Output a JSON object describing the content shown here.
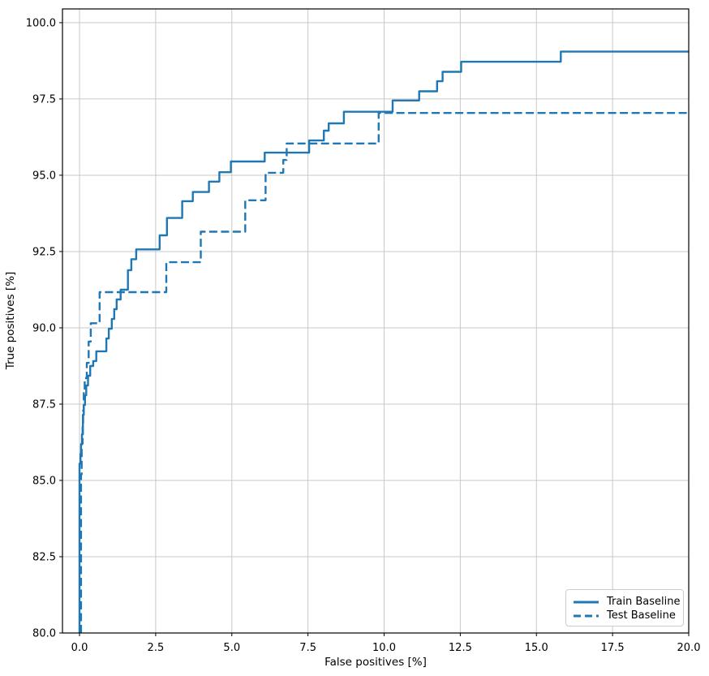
{
  "chart_data": {
    "type": "line",
    "subtype": "step-post",
    "title": "",
    "xlabel": "False positives [%]",
    "ylabel": "True positives [%]",
    "xlim": [
      -0.56,
      20.0
    ],
    "ylim": [
      80.0,
      100.45
    ],
    "grid": true,
    "legend_position": "lower right",
    "line_color": "#1f77b4",
    "grid_color": "#c9c9c9",
    "spine_color": "#000000",
    "xticks": [
      0.0,
      2.5,
      5.0,
      7.5,
      10.0,
      12.5,
      15.0,
      17.5,
      20.0
    ],
    "xtick_labels": [
      "0.0",
      "2.5",
      "5.0",
      "7.5",
      "10.0",
      "12.5",
      "15.0",
      "17.5",
      "20.0"
    ],
    "yticks": [
      80.0,
      82.5,
      85.0,
      87.5,
      90.0,
      92.5,
      95.0,
      97.5,
      100.0
    ],
    "ytick_labels": [
      "80.0",
      "82.5",
      "85.0",
      "87.5",
      "90.0",
      "92.5",
      "95.0",
      "97.5",
      "100.0"
    ],
    "series": [
      {
        "name": "Train Baseline",
        "style": "solid",
        "steps": [
          [
            0.0,
            80.0
          ],
          [
            0.0,
            85.55
          ],
          [
            0.03,
            85.87
          ],
          [
            0.05,
            86.19
          ],
          [
            0.08,
            86.51
          ],
          [
            0.11,
            87.15
          ],
          [
            0.14,
            87.47
          ],
          [
            0.18,
            87.79
          ],
          [
            0.22,
            88.11
          ],
          [
            0.28,
            88.43
          ],
          [
            0.35,
            88.75
          ],
          [
            0.45,
            88.91
          ],
          [
            0.55,
            89.23
          ],
          [
            0.88,
            89.65
          ],
          [
            0.96,
            89.97
          ],
          [
            1.06,
            90.29
          ],
          [
            1.14,
            90.61
          ],
          [
            1.22,
            90.93
          ],
          [
            1.35,
            91.25
          ],
          [
            1.59,
            91.89
          ],
          [
            1.7,
            92.25
          ],
          [
            1.86,
            92.57
          ],
          [
            2.63,
            93.03
          ],
          [
            2.87,
            93.6
          ],
          [
            3.37,
            94.15
          ],
          [
            3.72,
            94.45
          ],
          [
            4.25,
            94.79
          ],
          [
            4.59,
            95.1
          ],
          [
            4.97,
            95.45
          ],
          [
            6.08,
            95.74
          ],
          [
            7.54,
            96.14
          ],
          [
            8.02,
            96.46
          ],
          [
            8.18,
            96.7
          ],
          [
            8.68,
            97.08
          ],
          [
            10.28,
            97.45
          ],
          [
            11.15,
            97.75
          ],
          [
            11.74,
            98.08
          ],
          [
            11.92,
            98.39
          ],
          [
            12.53,
            98.72
          ],
          [
            15.8,
            99.05
          ],
          [
            20.0,
            99.05
          ]
        ]
      },
      {
        "name": "Test Baseline",
        "style": "dashed",
        "steps": [
          [
            0.05,
            80.0
          ],
          [
            0.05,
            85.2
          ],
          [
            0.07,
            86.2
          ],
          [
            0.1,
            86.8
          ],
          [
            0.12,
            87.3
          ],
          [
            0.14,
            87.9
          ],
          [
            0.17,
            88.35
          ],
          [
            0.24,
            88.85
          ],
          [
            0.3,
            89.55
          ],
          [
            0.37,
            90.15
          ],
          [
            0.66,
            91.17
          ],
          [
            2.85,
            92.15
          ],
          [
            3.98,
            93.15
          ],
          [
            5.44,
            94.18
          ],
          [
            6.11,
            95.08
          ],
          [
            6.69,
            95.5
          ],
          [
            6.8,
            96.04
          ],
          [
            9.82,
            97.04
          ],
          [
            20.0,
            97.04
          ]
        ]
      }
    ]
  }
}
